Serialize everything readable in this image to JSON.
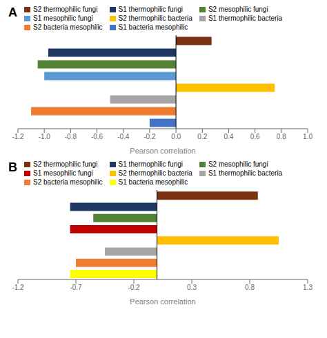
{
  "chart_data": [
    {
      "type": "bar",
      "orientation": "horizontal",
      "title": "A",
      "categories": [
        "S2 thermophilic fungi",
        "S1 thermophilic fungi",
        "S2 mesophilic fungi",
        "S1 mesophilic fungi",
        "S2 thermophilic bacteria",
        "S1 thermophilic bacteria",
        "S2 bacteria mesophilic",
        "S1 bacteria mesophilic"
      ],
      "values": [
        0.27,
        -0.97,
        -1.05,
        -1.0,
        0.75,
        -0.5,
        -1.1,
        -0.2
      ],
      "colors": [
        "#7B3010",
        "#1F3864",
        "#548235",
        "#5B9BD5",
        "#FFC000",
        "#A5A5A5",
        "#ED7D31",
        "#4472C4"
      ],
      "xlim": [
        -1.2,
        1.0
      ],
      "xticks": [
        -1.2,
        {
          "value": -1.0,
          "label": "-1.0"
        },
        -0.8,
        -0.6,
        -0.4,
        -0.2,
        {
          "value": 0.0,
          "label": "0.0"
        },
        0.2,
        0.4,
        0.6,
        0.8,
        {
          "value": 1.0,
          "label": "1.0"
        }
      ],
      "xlabel": "Pearson correlation",
      "tick_labels": "x",
      "legend": "top",
      "grid": false
    },
    {
      "type": "bar",
      "orientation": "horizontal",
      "title": "B",
      "categories": [
        "S2 thermophilic fungi",
        "S1 thermophilic fungi",
        "S2 mesophilic fungi",
        "S1 mesophilic fungi",
        "S2 thermophilic bacteria",
        "S1 thermophilic bacteria",
        "S2 bacteria mesophilic",
        "S1 bacteria mesophilic"
      ],
      "values": [
        0.87,
        -0.75,
        -0.55,
        -0.75,
        1.05,
        -0.45,
        -0.7,
        -0.75
      ],
      "colors": [
        "#7B3010",
        "#1F3864",
        "#548235",
        "#C00000",
        "#FFC000",
        "#A5A5A5",
        "#ED7D31",
        "#FFFF00"
      ],
      "xlim": [
        -1.2,
        1.3
      ],
      "xticks": [
        -1.2,
        -0.7,
        -0.2,
        0.3,
        0.8,
        1.3
      ],
      "xlabel": "Pearson correlation",
      "tick_labels": "x",
      "legend": "top",
      "grid": false
    }
  ]
}
